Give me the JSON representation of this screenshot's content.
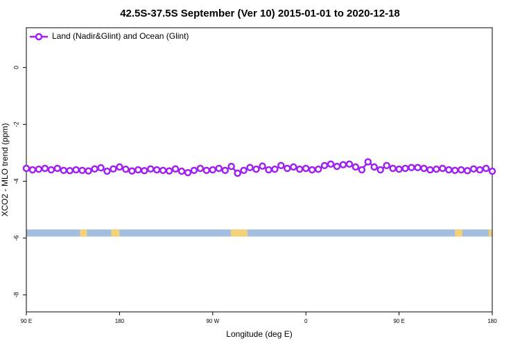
{
  "chart_data": {
    "type": "line",
    "title": "42.5S-37.5S September (Ver 10)   2015-01-01 to 2020-12-18",
    "xlabel": "Longitude (deg E)",
    "ylabel": "XCO2 - MLO trend (ppm)",
    "xlim": [
      90,
      540
    ],
    "ylim": [
      -8.6,
      1.4
    ],
    "xticks": [
      {
        "value": 90,
        "label": "90 E"
      },
      {
        "value": 180,
        "label": "180"
      },
      {
        "value": 270,
        "label": "90 W"
      },
      {
        "value": 360,
        "label": "0"
      },
      {
        "value": 450,
        "label": "90 E"
      },
      {
        "value": 540,
        "label": "180"
      }
    ],
    "yticks": [
      -8,
      -6,
      -4,
      -2,
      0
    ],
    "legend_position": "top-left",
    "x": [
      90,
      96,
      102,
      108,
      114,
      120,
      126,
      132,
      138,
      144,
      150,
      156,
      162,
      168,
      174,
      180,
      186,
      192,
      198,
      204,
      210,
      216,
      222,
      228,
      234,
      240,
      246,
      252,
      258,
      264,
      270,
      276,
      282,
      288,
      294,
      300,
      306,
      312,
      318,
      324,
      330,
      336,
      342,
      348,
      354,
      360,
      366,
      372,
      378,
      384,
      390,
      396,
      402,
      408,
      414,
      420,
      426,
      432,
      438,
      444,
      450,
      456,
      462,
      468,
      474,
      480,
      486,
      492,
      498,
      504,
      510,
      516,
      522,
      528,
      534,
      540
    ],
    "series": [
      {
        "name": "Land (Nadir&Glint) and Ocean (Glint)",
        "color": "#a020f0",
        "values": [
          -3.55,
          -3.6,
          -3.58,
          -3.55,
          -3.6,
          -3.55,
          -3.62,
          -3.63,
          -3.6,
          -3.62,
          -3.64,
          -3.57,
          -3.53,
          -3.65,
          -3.57,
          -3.5,
          -3.58,
          -3.64,
          -3.6,
          -3.63,
          -3.57,
          -3.6,
          -3.62,
          -3.64,
          -3.57,
          -3.65,
          -3.7,
          -3.62,
          -3.55,
          -3.62,
          -3.6,
          -3.55,
          -3.62,
          -3.48,
          -3.72,
          -3.62,
          -3.52,
          -3.58,
          -3.47,
          -3.6,
          -3.58,
          -3.45,
          -3.55,
          -3.5,
          -3.58,
          -3.55,
          -3.6,
          -3.58,
          -3.45,
          -3.4,
          -3.48,
          -3.42,
          -3.4,
          -3.5,
          -3.6,
          -3.32,
          -3.5,
          -3.6,
          -3.45,
          -3.55,
          -3.58,
          -3.55,
          -3.52,
          -3.52,
          -3.55,
          -3.6,
          -3.58,
          -3.55,
          -3.6,
          -3.62,
          -3.6,
          -3.63,
          -3.57,
          -3.6,
          -3.55,
          -3.65
        ]
      }
    ],
    "surface_band": {
      "y": [
        -5.95,
        -5.7
      ],
      "ocean_color": "#a4bedf",
      "land_color": "#f5d27a",
      "land_segments": [
        [
          141.7,
          148.5
        ],
        [
          172,
          180
        ],
        [
          287.5,
          303.6
        ],
        [
          504,
          511
        ],
        [
          536.6,
          540
        ]
      ]
    }
  }
}
